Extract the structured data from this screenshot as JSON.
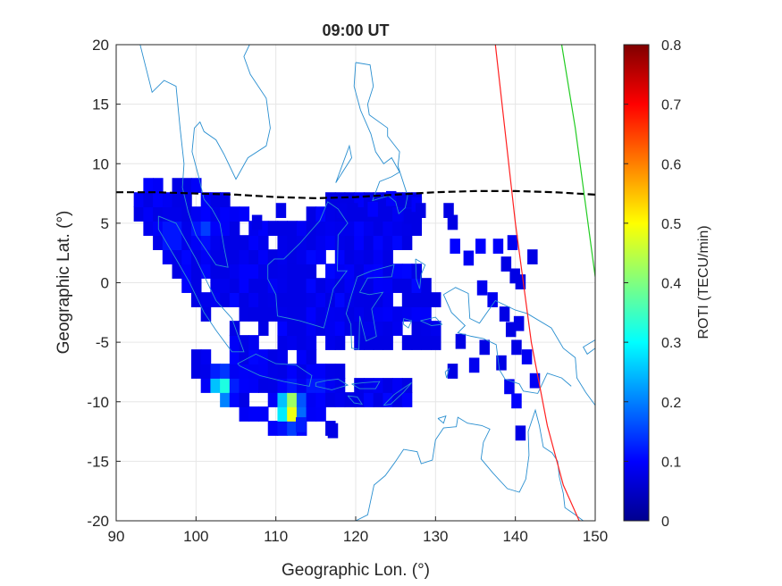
{
  "chart_data": {
    "type": "heatmap",
    "title": "09:00 UT",
    "xlabel": "Geographic Lon. (°)",
    "ylabel": "Geographic Lat. (°)",
    "xlim": [
      90,
      150
    ],
    "ylim": [
      -20,
      20
    ],
    "xticks": [
      "90",
      "100",
      "110",
      "120",
      "130",
      "140",
      "150"
    ],
    "yticks": [
      "20",
      "15",
      "10",
      "5",
      "0",
      "-5",
      "-10",
      "-15",
      "-20"
    ],
    "grid": true,
    "colorbar": {
      "label": "ROTI (TECU/min)",
      "colormap": "jet",
      "range": [
        0,
        0.8
      ],
      "ticks": [
        "0",
        "0.1",
        "0.2",
        "0.3",
        "0.4",
        "0.5",
        "0.6",
        "0.7",
        "0.8"
      ]
    },
    "series": [
      {
        "kind": "roti_cells",
        "cell_size_deg": [
          1.2,
          1.2
        ],
        "background_level": 0.08,
        "hotspots": [
          {
            "lon": 103.2,
            "lat": -8.8,
            "roti": 0.36
          },
          {
            "lon": 111.8,
            "lat": -10.5,
            "roti": 0.58
          },
          {
            "lon": 112.0,
            "lat": -11.2,
            "roti": 0.22
          },
          {
            "lon": 97.0,
            "lat": 4.0,
            "roti": 0.14
          },
          {
            "lon": 101.0,
            "lat": 4.5,
            "roti": 0.15
          },
          {
            "lon": 115.0,
            "lat": -8.5,
            "roti": 0.13
          }
        ]
      },
      {
        "kind": "line",
        "style": "dashed",
        "color": "#000000",
        "x": [
          90,
          95,
          100,
          105,
          110,
          115,
          120,
          125,
          130,
          135,
          140,
          145,
          150
        ],
        "y": [
          7.6,
          7.6,
          7.5,
          7.4,
          7.2,
          7.1,
          7.2,
          7.4,
          7.6,
          7.7,
          7.7,
          7.6,
          7.4
        ]
      },
      {
        "kind": "line",
        "style": "solid",
        "color": "#ff2020",
        "x": [
          137.5,
          140,
          142,
          144,
          146,
          148
        ],
        "y": [
          20,
          5,
          -5,
          -12,
          -17,
          -20
        ]
      },
      {
        "kind": "line",
        "style": "solid",
        "color": "#22cc22",
        "x": [
          145.8,
          147.5,
          149.5,
          150
        ],
        "y": [
          20,
          13,
          3,
          0.5
        ]
      }
    ]
  },
  "colors": {
    "coastline": "#2a8fd0",
    "grid": "#e6e6e6",
    "axis": "#262626",
    "background": "#ffffff"
  }
}
